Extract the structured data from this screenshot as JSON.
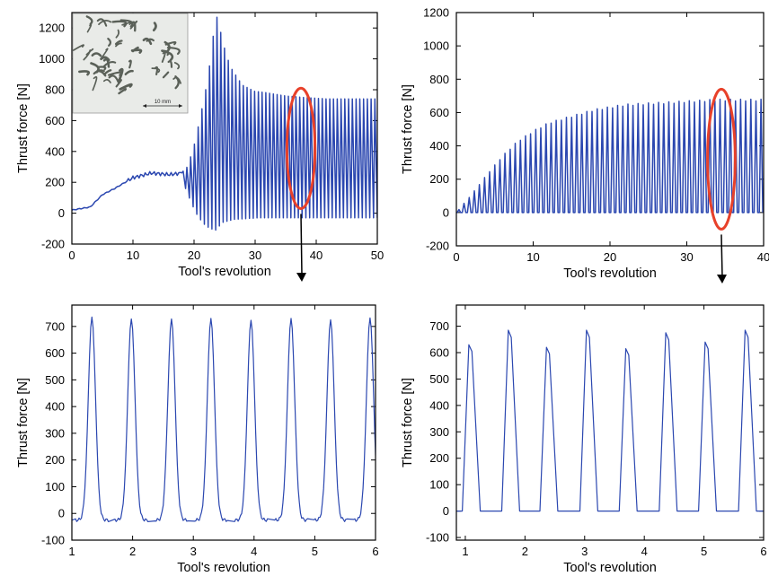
{
  "colors": {
    "series": "#2b47b0",
    "highlight": "#e8412a",
    "inset_bg": "#e9ebe8",
    "chip": "#5a6058"
  },
  "annotations": {
    "arrow_icon": "down-arrow-icon",
    "ellipse_icon": "highlight-ellipse-icon"
  },
  "chart_data": [
    {
      "type": "line",
      "panel": "top-left",
      "xlabel": "Tool's revolution",
      "ylabel": "Thrust force [N]",
      "xlim": [
        0,
        50
      ],
      "ylim": [
        -200,
        1300
      ],
      "xticks": [
        0,
        10,
        20,
        30,
        40,
        50
      ],
      "yticks": [
        -200,
        0,
        200,
        400,
        600,
        800,
        1000,
        1200
      ],
      "grid": false,
      "inset": {
        "content": "photo of helical chips",
        "scale_label": "10 mm"
      },
      "highlight_region": {
        "x_center": 37.5,
        "x_halfwidth": 2.3,
        "y_center": 420,
        "y_halfheight": 390
      },
      "envelope": {
        "x": [
          0,
          3,
          5,
          7,
          10,
          13,
          16,
          18,
          19,
          20,
          21,
          22,
          23,
          23.6,
          24,
          25,
          26,
          28,
          30,
          32,
          35,
          38,
          42,
          46,
          50
        ],
        "upper": [
          20,
          40,
          120,
          160,
          230,
          260,
          250,
          260,
          300,
          420,
          600,
          800,
          1050,
          1300,
          1250,
          1080,
          950,
          830,
          790,
          780,
          760,
          750,
          740,
          740,
          740
        ],
        "lower": [
          20,
          40,
          120,
          160,
          230,
          240,
          220,
          160,
          60,
          -20,
          -70,
          -100,
          -110,
          -80,
          -60,
          -50,
          -40,
          -35,
          -30,
          -30,
          -30,
          -30,
          -30,
          -30,
          -30
        ]
      }
    },
    {
      "type": "line",
      "panel": "top-right",
      "xlabel": "Tool's revolution",
      "ylabel": "Thrust force [N]",
      "xlim": [
        0,
        40
      ],
      "ylim": [
        -200,
        1200
      ],
      "xticks": [
        0,
        10,
        20,
        30,
        40
      ],
      "yticks": [
        -200,
        0,
        200,
        400,
        600,
        800,
        1000,
        1200
      ],
      "grid": false,
      "highlight_region": {
        "x_center": 34.5,
        "x_halfwidth": 1.8,
        "y_center": 320,
        "y_halfheight": 420
      },
      "envelope": {
        "x": [
          0,
          2,
          4,
          6,
          8,
          10,
          12,
          15,
          18,
          22,
          26,
          30,
          34,
          38,
          40
        ],
        "upper": [
          0,
          110,
          230,
          340,
          430,
          490,
          540,
          580,
          620,
          650,
          660,
          670,
          680,
          680,
          680
        ],
        "lower": [
          0,
          0,
          0,
          0,
          0,
          0,
          0,
          0,
          0,
          0,
          0,
          0,
          0,
          0,
          0
        ]
      }
    },
    {
      "type": "line",
      "panel": "bottom-left",
      "xlabel": "Tool's revolution",
      "ylabel": "Thrust force [N]",
      "xlim": [
        1,
        6
      ],
      "ylim": [
        -100,
        780
      ],
      "xticks": [
        1,
        2,
        3,
        4,
        5,
        6
      ],
      "yticks": [
        -100,
        0,
        100,
        200,
        300,
        400,
        500,
        600,
        700
      ],
      "grid": false,
      "peaks": {
        "x": [
          1.33,
          1.98,
          2.64,
          3.29,
          3.95,
          4.61,
          5.26,
          5.91
        ],
        "y": [
          735,
          728,
          728,
          730,
          723,
          730,
          725,
          732
        ]
      },
      "baseline": -25
    },
    {
      "type": "line",
      "panel": "bottom-right",
      "xlabel": "Tool's revolution",
      "ylabel": "Thrust force [N]",
      "xlim": [
        0.85,
        6
      ],
      "ylim": [
        -110,
        780
      ],
      "xticks": [
        1,
        2,
        3,
        4,
        5,
        6
      ],
      "yticks": [
        -100,
        0,
        100,
        200,
        300,
        400,
        500,
        600,
        700
      ],
      "grid": false,
      "peaks": {
        "x": [
          1.08,
          1.74,
          2.38,
          3.05,
          3.71,
          4.38,
          5.04,
          5.71
        ],
        "y": [
          630,
          685,
          620,
          685,
          615,
          675,
          640,
          685
        ]
      },
      "baseline": 0
    }
  ]
}
